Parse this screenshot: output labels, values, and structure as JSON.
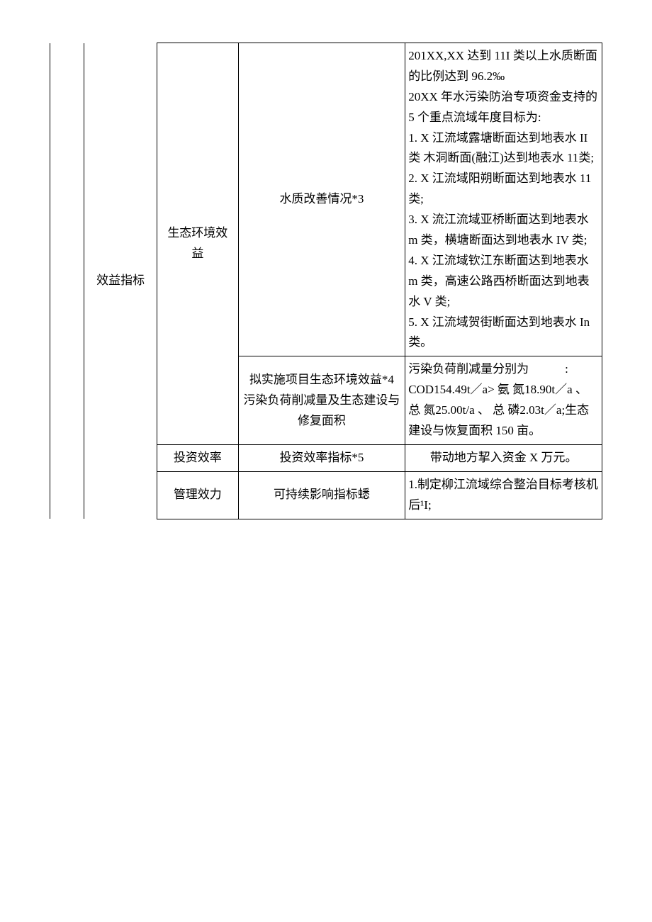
{
  "table": {
    "col2_label": "效益指标",
    "rows": [
      {
        "c3": "生态环境效益",
        "c4": "水质改善情况*3",
        "c5": "201XX,XX 达到 11I 类以上水质断面的比例达到 96.2‰\n20XX 年水污染防治专项资金支持的 5 个重点流域年度目标为:\n1. X 江流域露塘断面达到地表水 II 类 木洞断面(融江)达到地表水 11类;\n2. X 江流域阳朔断面达到地表水 11 类;\n3. X 流江流域亚桥断面达到地表水 m 类，横塘断面达到地表水 IV 类;\n4. X 江流域钦江东断面达到地表水 m 类，高速公路西桥断面达到地表水 V 类;\n5. X 江流域贺街断面达到地表水 In 类。"
      },
      {
        "c4": "拟实施项目生态环境效益*4\n污染负荷削减量及生态建设与修复面积",
        "c5": "污染负荷削减量分别为　　　:\nCOD154.49t／a> 氨 氮18.90t／a 、 总 氮25.00t/a 、 总 磷2.03t／a;生态建设与恢复面积 150 亩。"
      },
      {
        "c3": "投资效率",
        "c4": "投资效率指标*5",
        "c5": "带动地方挈入资金 X 万元。"
      },
      {
        "c3": "管理效力",
        "c4": "可持续影响指标蟋",
        "c5": "1.制定柳江流域综合整治目标考核机\n后¹I;"
      }
    ]
  },
  "style": {
    "font_size_pt": 13,
    "line_height": 1.7,
    "border_color": "#000000",
    "background": "#ffffff",
    "text_color": "#000000"
  }
}
